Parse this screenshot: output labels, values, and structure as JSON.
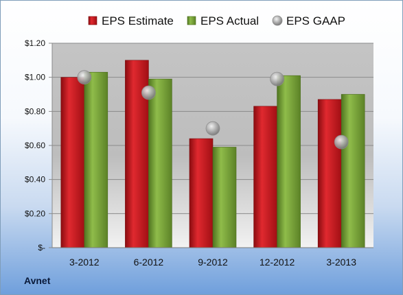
{
  "company": "Avnet",
  "chart_data": {
    "type": "bar",
    "categories": [
      "3-2012",
      "6-2012",
      "9-2012",
      "12-2012",
      "3-2013"
    ],
    "series": [
      {
        "name": "EPS Estimate",
        "kind": "bar",
        "color": "#c0141a",
        "values": [
          1.0,
          1.1,
          0.64,
          0.83,
          0.87
        ]
      },
      {
        "name": "EPS Actual",
        "kind": "bar",
        "color": "#6f9a2e",
        "values": [
          1.03,
          0.99,
          0.59,
          1.01,
          0.9
        ]
      },
      {
        "name": "EPS GAAP",
        "kind": "point",
        "color": "#a8a8a8",
        "values": [
          1.0,
          0.91,
          0.7,
          0.99,
          0.62
        ]
      }
    ],
    "ylim": [
      0,
      1.2
    ],
    "yticks": [
      0,
      0.2,
      0.4,
      0.6,
      0.8,
      1.0,
      1.2
    ],
    "ytick_labels": [
      "$-",
      "$0.20",
      "$0.40",
      "$0.60",
      "$0.80",
      "$1.00",
      "$1.20"
    ],
    "grid": true,
    "legend_position": "top"
  }
}
